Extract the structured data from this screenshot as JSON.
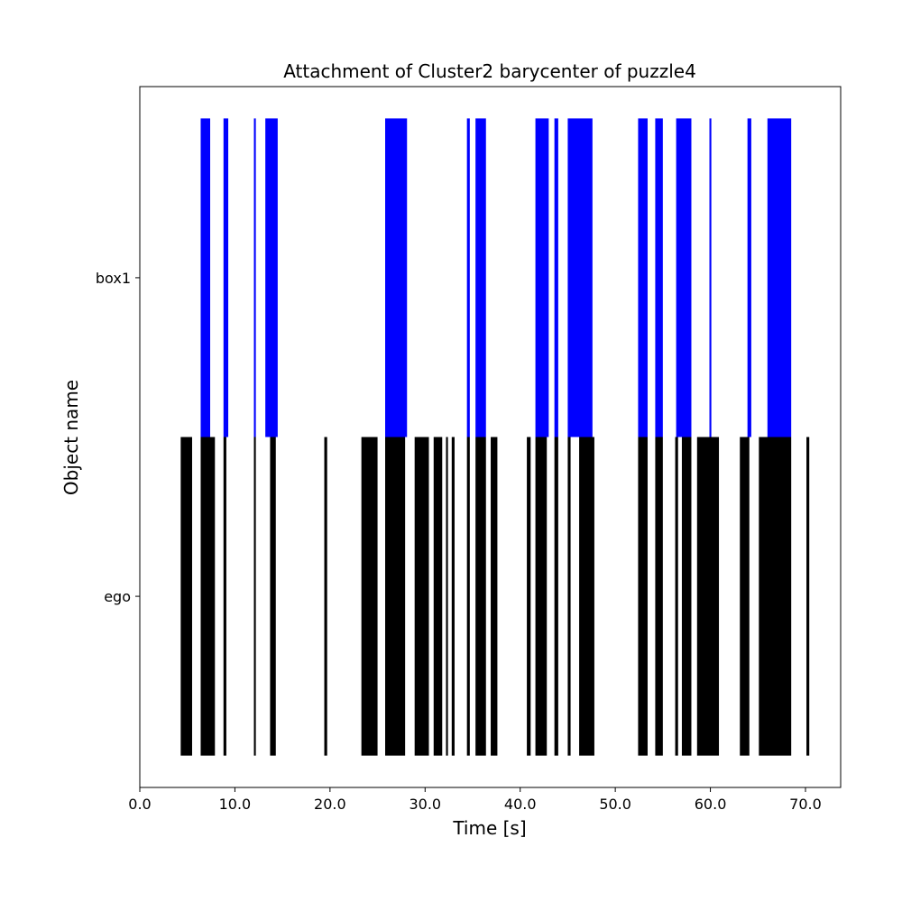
{
  "chart_data": {
    "type": "broken_barh",
    "title": "Attachment of Cluster2 barycenter of puzzle4",
    "xlabel": "Time [s]",
    "ylabel": "Object name",
    "xlim": [
      0.0,
      73.7
    ],
    "xticks": [
      0.0,
      10.0,
      20.0,
      30.0,
      40.0,
      50.0,
      60.0,
      70.0
    ],
    "xtick_labels": [
      "0.0",
      "10.0",
      "20.0",
      "30.0",
      "40.0",
      "50.0",
      "60.0",
      "70.0"
    ],
    "categories": [
      "ego",
      "box1"
    ],
    "grid": false,
    "series": [
      {
        "category": "box1",
        "color": "#0000ff",
        "intervals": [
          [
            6.4,
            7.4
          ],
          [
            8.8,
            9.3
          ],
          [
            12.0,
            12.2
          ],
          [
            13.2,
            14.5
          ],
          [
            25.8,
            28.1
          ],
          [
            34.4,
            34.7
          ],
          [
            35.3,
            36.4
          ],
          [
            41.6,
            43.0
          ],
          [
            43.6,
            44.0
          ],
          [
            45.0,
            47.6
          ],
          [
            52.4,
            53.4
          ],
          [
            54.2,
            55.0
          ],
          [
            56.4,
            58.0
          ],
          [
            59.9,
            60.1
          ],
          [
            63.9,
            64.3
          ],
          [
            66.0,
            68.5
          ]
        ]
      },
      {
        "category": "ego",
        "color": "#000000",
        "intervals": [
          [
            4.3,
            5.5
          ],
          [
            6.4,
            7.9
          ],
          [
            8.8,
            9.1
          ],
          [
            12.0,
            12.2
          ],
          [
            13.7,
            14.3
          ],
          [
            19.4,
            19.7
          ],
          [
            23.3,
            25.0
          ],
          [
            25.8,
            27.9
          ],
          [
            28.9,
            30.4
          ],
          [
            30.9,
            31.8
          ],
          [
            32.2,
            32.4
          ],
          [
            32.8,
            33.1
          ],
          [
            34.4,
            34.7
          ],
          [
            35.3,
            36.4
          ],
          [
            36.9,
            37.6
          ],
          [
            40.7,
            41.1
          ],
          [
            41.6,
            42.8
          ],
          [
            43.6,
            44.0
          ],
          [
            45.0,
            45.3
          ],
          [
            46.2,
            47.8
          ],
          [
            52.4,
            53.4
          ],
          [
            54.2,
            55.0
          ],
          [
            56.3,
            56.6
          ],
          [
            57.0,
            58.0
          ],
          [
            58.6,
            60.9
          ],
          [
            63.1,
            64.1
          ],
          [
            65.1,
            68.5
          ],
          [
            70.1,
            70.4
          ]
        ]
      }
    ]
  }
}
